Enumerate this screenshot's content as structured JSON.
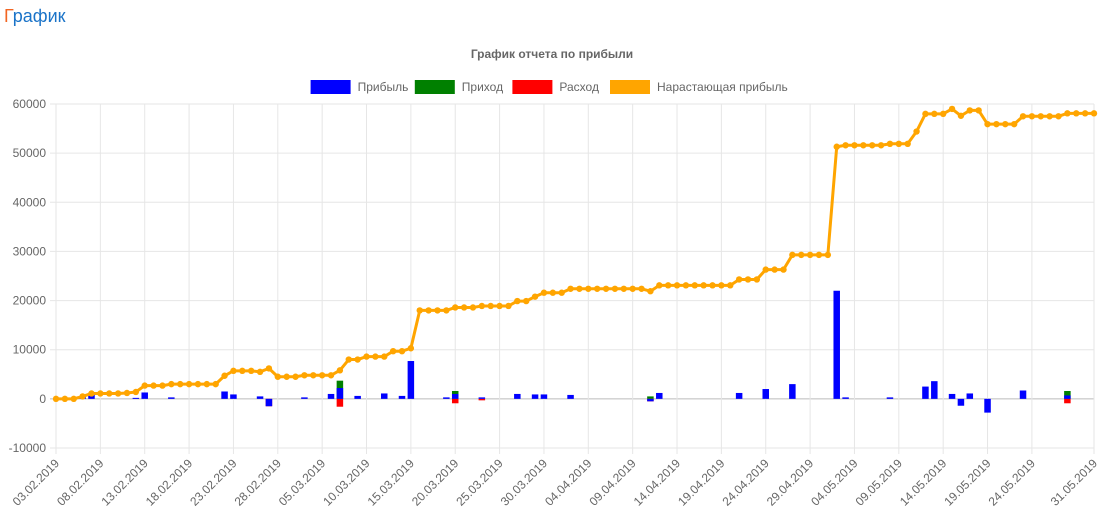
{
  "page": {
    "title_first_letter": "Г",
    "title_rest": "рафик"
  },
  "chart_data": {
    "type": "bar",
    "title": "График отчета по прибыли",
    "xlabel": "",
    "ylabel": "",
    "ylim": [
      -10000,
      60000
    ],
    "yticks": [
      60000,
      50000,
      40000,
      30000,
      20000,
      10000,
      0,
      -10000
    ],
    "grid": true,
    "legend_position": "top",
    "x_start": "03.02.2019",
    "x_end": "31.05.2019",
    "x_tick_labels": [
      "03.02.2019",
      "08.02.2019",
      "13.02.2019",
      "18.02.2019",
      "23.02.2019",
      "28.02.2019",
      "05.03.2019",
      "10.03.2019",
      "15.03.2019",
      "20.03.2019",
      "25.03.2019",
      "30.03.2019",
      "04.04.2019",
      "09.04.2019",
      "14.04.2019",
      "19.04.2019",
      "24.04.2019",
      "29.04.2019",
      "04.05.2019",
      "09.05.2019",
      "14.05.2019",
      "19.05.2019",
      "24.05.2019",
      "31.05.2019"
    ],
    "legend": [
      {
        "name": "Прибыль",
        "color": "#0000ff"
      },
      {
        "name": "Приход",
        "color": "#008000"
      },
      {
        "name": "Расход",
        "color": "#ff0000"
      },
      {
        "name": "Нарастающая прибыль",
        "color": "#ffa500"
      }
    ],
    "bars": [
      {
        "date": "06.02.2019",
        "profit": 500
      },
      {
        "date": "07.02.2019",
        "profit": 800
      },
      {
        "date": "12.02.2019",
        "profit": 200
      },
      {
        "date": "13.02.2019",
        "profit": 1300
      },
      {
        "date": "16.02.2019",
        "profit": 300
      },
      {
        "date": "22.02.2019",
        "profit": 1500
      },
      {
        "date": "23.02.2019",
        "profit": 900
      },
      {
        "date": "26.02.2019",
        "profit": 500
      },
      {
        "date": "27.02.2019",
        "profit": -1500,
        "expense": -1500
      },
      {
        "date": "03.03.2019",
        "profit": 300
      },
      {
        "date": "06.03.2019",
        "profit": 1000
      },
      {
        "date": "07.03.2019",
        "profit": 2200,
        "income": 3700,
        "expense": -1600
      },
      {
        "date": "09.03.2019",
        "profit": 600
      },
      {
        "date": "12.03.2019",
        "profit": 1100
      },
      {
        "date": "14.03.2019",
        "profit": 600
      },
      {
        "date": "15.03.2019",
        "profit": 7700
      },
      {
        "date": "19.03.2019",
        "profit": 300
      },
      {
        "date": "20.03.2019",
        "profit": 1000,
        "income": 1600,
        "expense": -900
      },
      {
        "date": "23.03.2019",
        "profit": 300,
        "expense": -300
      },
      {
        "date": "27.03.2019",
        "profit": 1000
      },
      {
        "date": "29.03.2019",
        "profit": 900
      },
      {
        "date": "30.03.2019",
        "profit": 900
      },
      {
        "date": "02.04.2019",
        "profit": 800
      },
      {
        "date": "11.04.2019",
        "profit": -500,
        "income": 500,
        "expense": -500
      },
      {
        "date": "12.04.2019",
        "profit": 1200
      },
      {
        "date": "21.04.2019",
        "profit": 1200
      },
      {
        "date": "24.04.2019",
        "profit": 2000
      },
      {
        "date": "27.04.2019",
        "profit": 3000
      },
      {
        "date": "02.05.2019",
        "profit": 22000
      },
      {
        "date": "03.05.2019",
        "profit": 300
      },
      {
        "date": "08.05.2019",
        "profit": 300
      },
      {
        "date": "12.05.2019",
        "profit": 2500
      },
      {
        "date": "13.05.2019",
        "profit": 3600
      },
      {
        "date": "15.05.2019",
        "profit": 1000
      },
      {
        "date": "16.05.2019",
        "profit": -1400
      },
      {
        "date": "17.05.2019",
        "profit": 1100
      },
      {
        "date": "19.05.2019",
        "profit": -2800
      },
      {
        "date": "23.05.2019",
        "profit": 1700
      },
      {
        "date": "28.05.2019",
        "profit": 700,
        "income": 1600,
        "expense": -900
      }
    ],
    "cumulative": [
      [
        "03.02.2019",
        0
      ],
      [
        "04.02.2019",
        0
      ],
      [
        "05.02.2019",
        0
      ],
      [
        "06.02.2019",
        500
      ],
      [
        "07.02.2019",
        1100
      ],
      [
        "08.02.2019",
        1100
      ],
      [
        "09.02.2019",
        1100
      ],
      [
        "10.02.2019",
        1100
      ],
      [
        "11.02.2019",
        1200
      ],
      [
        "12.02.2019",
        1400
      ],
      [
        "13.02.2019",
        2700
      ],
      [
        "14.02.2019",
        2700
      ],
      [
        "15.02.2019",
        2700
      ],
      [
        "16.02.2019",
        3000
      ],
      [
        "17.02.2019",
        3000
      ],
      [
        "18.02.2019",
        3000
      ],
      [
        "19.02.2019",
        3000
      ],
      [
        "20.02.2019",
        3000
      ],
      [
        "21.02.2019",
        3000
      ],
      [
        "22.02.2019",
        4700
      ],
      [
        "23.02.2019",
        5700
      ],
      [
        "24.02.2019",
        5700
      ],
      [
        "25.02.2019",
        5700
      ],
      [
        "26.02.2019",
        5500
      ],
      [
        "27.02.2019",
        6200
      ],
      [
        "28.02.2019",
        4500
      ],
      [
        "01.03.2019",
        4500
      ],
      [
        "02.03.2019",
        4500
      ],
      [
        "03.03.2019",
        4800
      ],
      [
        "04.03.2019",
        4800
      ],
      [
        "05.03.2019",
        4800
      ],
      [
        "06.03.2019",
        4800
      ],
      [
        "07.03.2019",
        5800
      ],
      [
        "08.03.2019",
        8000
      ],
      [
        "09.03.2019",
        8000
      ],
      [
        "10.03.2019",
        8600
      ],
      [
        "11.03.2019",
        8600
      ],
      [
        "12.03.2019",
        8600
      ],
      [
        "13.03.2019",
        9700
      ],
      [
        "14.03.2019",
        9700
      ],
      [
        "15.03.2019",
        10300
      ],
      [
        "16.03.2019",
        18000
      ],
      [
        "17.03.2019",
        18000
      ],
      [
        "18.03.2019",
        18000
      ],
      [
        "19.03.2019",
        18000
      ],
      [
        "20.03.2019",
        18600
      ],
      [
        "21.03.2019",
        18600
      ],
      [
        "22.03.2019",
        18600
      ],
      [
        "23.03.2019",
        18900
      ],
      [
        "24.03.2019",
        18900
      ],
      [
        "25.03.2019",
        18900
      ],
      [
        "26.03.2019",
        18900
      ],
      [
        "27.03.2019",
        19900
      ],
      [
        "28.03.2019",
        19900
      ],
      [
        "29.03.2019",
        20800
      ],
      [
        "30.03.2019",
        21600
      ],
      [
        "31.03.2019",
        21600
      ],
      [
        "01.04.2019",
        21600
      ],
      [
        "02.04.2019",
        22400
      ],
      [
        "03.04.2019",
        22400
      ],
      [
        "04.04.2019",
        22400
      ],
      [
        "05.04.2019",
        22400
      ],
      [
        "06.04.2019",
        22400
      ],
      [
        "07.04.2019",
        22400
      ],
      [
        "08.04.2019",
        22400
      ],
      [
        "09.04.2019",
        22400
      ],
      [
        "10.04.2019",
        22400
      ],
      [
        "11.04.2019",
        21900
      ],
      [
        "12.04.2019",
        23100
      ],
      [
        "13.04.2019",
        23100
      ],
      [
        "14.04.2019",
        23100
      ],
      [
        "15.04.2019",
        23100
      ],
      [
        "16.04.2019",
        23100
      ],
      [
        "17.04.2019",
        23100
      ],
      [
        "18.04.2019",
        23100
      ],
      [
        "19.04.2019",
        23100
      ],
      [
        "20.04.2019",
        23100
      ],
      [
        "21.04.2019",
        24300
      ],
      [
        "22.04.2019",
        24300
      ],
      [
        "23.04.2019",
        24300
      ],
      [
        "24.04.2019",
        26300
      ],
      [
        "25.04.2019",
        26300
      ],
      [
        "26.04.2019",
        26300
      ],
      [
        "27.04.2019",
        29300
      ],
      [
        "28.04.2019",
        29300
      ],
      [
        "29.04.2019",
        29300
      ],
      [
        "30.04.2019",
        29300
      ],
      [
        "01.05.2019",
        29300
      ],
      [
        "02.05.2019",
        51300
      ],
      [
        "03.05.2019",
        51600
      ],
      [
        "04.05.2019",
        51600
      ],
      [
        "05.05.2019",
        51600
      ],
      [
        "06.05.2019",
        51600
      ],
      [
        "07.05.2019",
        51600
      ],
      [
        "08.05.2019",
        51900
      ],
      [
        "09.05.2019",
        51900
      ],
      [
        "10.05.2019",
        51900
      ],
      [
        "11.05.2019",
        54400
      ],
      [
        "12.05.2019",
        58000
      ],
      [
        "13.05.2019",
        58000
      ],
      [
        "14.05.2019",
        58000
      ],
      [
        "15.05.2019",
        59000
      ],
      [
        "16.05.2019",
        57600
      ],
      [
        "17.05.2019",
        58700
      ],
      [
        "18.05.2019",
        58700
      ],
      [
        "19.05.2019",
        55900
      ],
      [
        "20.05.2019",
        55900
      ],
      [
        "21.05.2019",
        55900
      ],
      [
        "22.05.2019",
        55900
      ],
      [
        "23.05.2019",
        57500
      ],
      [
        "24.05.2019",
        57500
      ],
      [
        "25.05.2019",
        57500
      ],
      [
        "26.05.2019",
        57500
      ],
      [
        "27.05.2019",
        57500
      ],
      [
        "28.05.2019",
        58100
      ],
      [
        "29.05.2019",
        58100
      ],
      [
        "30.05.2019",
        58100
      ],
      [
        "31.05.2019",
        58100
      ]
    ]
  }
}
